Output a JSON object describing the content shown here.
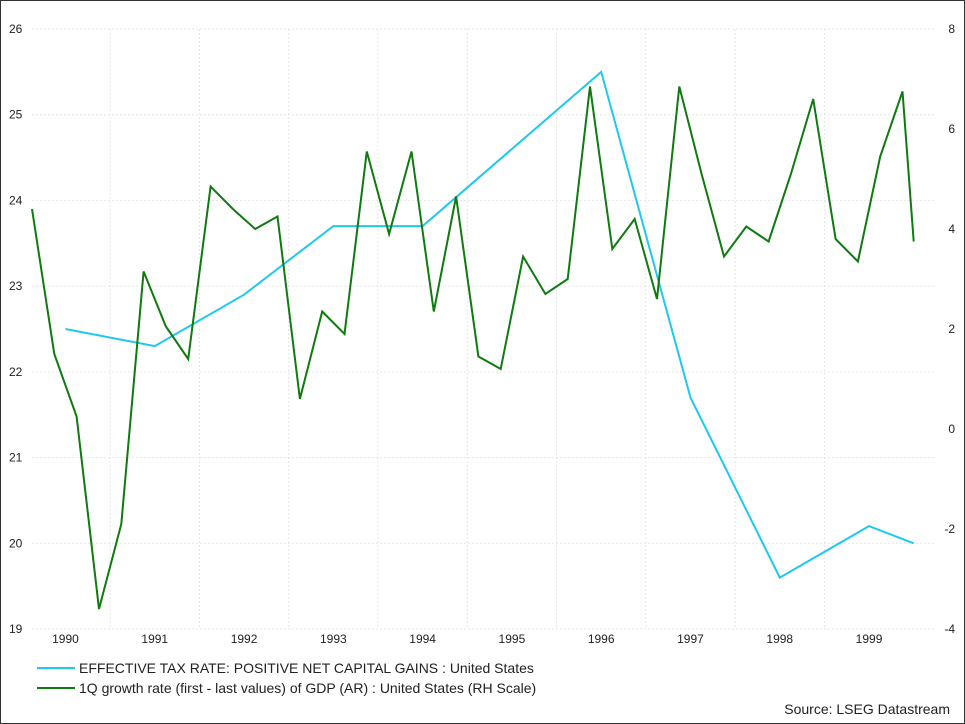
{
  "chart_data": {
    "type": "line",
    "x_ticks": [
      "1990",
      "1991",
      "1992",
      "1993",
      "1994",
      "1995",
      "1996",
      "1997",
      "1998",
      "1999"
    ],
    "y_left_ticks": [
      "19",
      "20",
      "21",
      "22",
      "23",
      "24",
      "25",
      "26"
    ],
    "y_right_ticks": [
      "-4",
      "-2",
      "0",
      "2",
      "4",
      "6",
      "8"
    ],
    "y_left_range": [
      19,
      26
    ],
    "y_right_range": [
      -4,
      8
    ],
    "x_range": [
      1989.625,
      1999.75
    ],
    "grid": true,
    "legend_position": "bottom-left",
    "series": [
      {
        "name": "EFFECTIVE TAX RATE: POSITIVE NET CAPITAL GAINS : United States",
        "axis": "left",
        "color": "#1ec8f0",
        "points": [
          [
            1990.0,
            22.5
          ],
          [
            1991.0,
            22.3
          ],
          [
            1992.0,
            22.9
          ],
          [
            1993.0,
            23.7
          ],
          [
            1994.0,
            23.7
          ],
          [
            1995.0,
            24.6
          ],
          [
            1996.0,
            25.5
          ],
          [
            1997.0,
            21.7
          ],
          [
            1998.0,
            19.6
          ],
          [
            1999.0,
            20.2
          ],
          [
            1999.5,
            20.0
          ]
        ]
      },
      {
        "name": "1Q growth rate (first - last values) of GDP (AR) : United States (RH Scale)",
        "axis": "right",
        "color": "#0f7a0f",
        "points": [
          [
            1989.625,
            4.4
          ],
          [
            1989.875,
            1.5
          ],
          [
            1990.125,
            0.25
          ],
          [
            1990.375,
            -3.6
          ],
          [
            1990.625,
            -1.9
          ],
          [
            1990.875,
            3.15
          ],
          [
            1991.125,
            2.05
          ],
          [
            1991.375,
            1.4
          ],
          [
            1991.625,
            4.85
          ],
          [
            1991.875,
            4.4
          ],
          [
            1992.125,
            4.0
          ],
          [
            1992.375,
            4.25
          ],
          [
            1992.625,
            0.6
          ],
          [
            1992.875,
            2.35
          ],
          [
            1993.125,
            1.9
          ],
          [
            1993.375,
            5.55
          ],
          [
            1993.625,
            3.9
          ],
          [
            1993.875,
            5.55
          ],
          [
            1994.125,
            2.35
          ],
          [
            1994.375,
            4.65
          ],
          [
            1994.625,
            1.45
          ],
          [
            1994.875,
            1.2
          ],
          [
            1995.125,
            3.45
          ],
          [
            1995.375,
            2.7
          ],
          [
            1995.625,
            3.0
          ],
          [
            1995.875,
            6.85
          ],
          [
            1996.125,
            3.6
          ],
          [
            1996.375,
            4.2
          ],
          [
            1996.625,
            2.6
          ],
          [
            1996.875,
            6.85
          ],
          [
            1997.125,
            5.1
          ],
          [
            1997.375,
            3.45
          ],
          [
            1997.625,
            4.05
          ],
          [
            1997.875,
            3.75
          ],
          [
            1998.125,
            5.1
          ],
          [
            1998.375,
            6.6
          ],
          [
            1998.625,
            3.8
          ],
          [
            1998.875,
            3.35
          ],
          [
            1999.125,
            5.45
          ],
          [
            1999.375,
            6.75
          ],
          [
            1999.5,
            3.75
          ]
        ]
      }
    ],
    "source": "Source: LSEG Datastream"
  }
}
